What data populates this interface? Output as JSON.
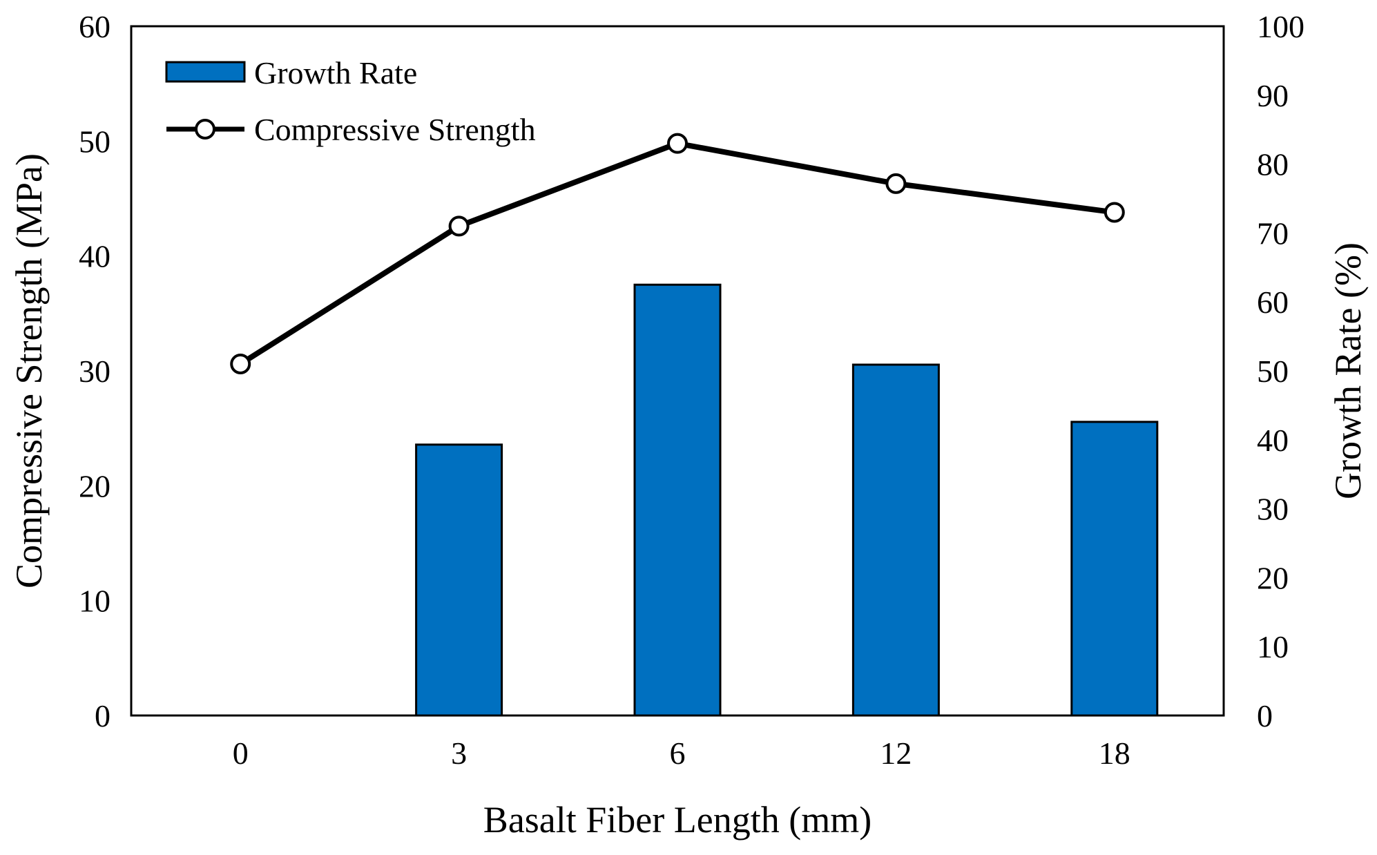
{
  "chart_data": {
    "type": "bar+line",
    "title": "",
    "xlabel": "Basalt Fiber Length (mm)",
    "ylabel_left": "Compressive Strength (MPa)",
    "ylabel_right": "Growth Rate (%)",
    "categories": [
      "0",
      "3",
      "6",
      "12",
      "18"
    ],
    "ylim_left": [
      0,
      60
    ],
    "ylim_right": [
      0,
      100
    ],
    "yticks_left": [
      "0",
      "10",
      "20",
      "30",
      "40",
      "50",
      "60"
    ],
    "yticks_right": [
      "0",
      "10",
      "20",
      "30",
      "40",
      "50",
      "60",
      "70",
      "80",
      "90",
      "100"
    ],
    "grid": false,
    "legend_position": "top-left",
    "series": [
      {
        "name": "Growth Rate",
        "type": "bar",
        "axis": "right",
        "color": "#0070C0",
        "values": [
          0,
          39.3,
          62.5,
          50.9,
          42.6
        ]
      },
      {
        "name": "Compressive Strength",
        "type": "line",
        "axis": "left",
        "color": "#000000",
        "marker": "open-circle",
        "values": [
          30.6,
          42.6,
          49.8,
          46.3,
          43.8
        ]
      }
    ]
  }
}
